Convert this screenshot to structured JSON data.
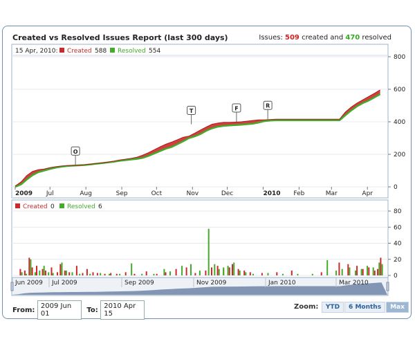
{
  "title": "Created vs Resolved Issues Report (last 300 days)",
  "issues": {
    "prefix": "Issues:",
    "created": "509",
    "created_word": "created and",
    "resolved": "470",
    "resolved_word": "resolved"
  },
  "top_legend": {
    "date": "15 Apr, 2010:",
    "created_label": "Created",
    "created_value": "588",
    "resolved_label": "Resolved",
    "resolved_value": "554"
  },
  "bottom_legend": {
    "created_label": "Created",
    "created_value": "0",
    "resolved_label": "Resolved",
    "resolved_value": "6"
  },
  "colors": {
    "created": "#cc2a2a",
    "resolved": "#44aa2a",
    "navigator": "#6f86a8"
  },
  "chart_data": [
    {
      "type": "area",
      "y_ticks": [
        0,
        200,
        400,
        600,
        800
      ],
      "ylim": [
        0,
        800
      ],
      "x_ticks": [
        "2009",
        "Jul",
        "Aug",
        "Sep",
        "Oct",
        "Nov",
        "Dec",
        "2010",
        "Feb",
        "Mar",
        "Apr"
      ],
      "x_tick_bold": [
        "2009",
        "2010"
      ],
      "xlim": [
        0,
        320
      ],
      "grid": true,
      "x_tick_days": [
        0,
        30,
        61,
        92,
        122,
        153,
        183,
        214,
        245,
        273,
        304
      ],
      "series": [
        {
          "name": "Created",
          "x": [
            0,
            5,
            10,
            15,
            20,
            25,
            30,
            35,
            40,
            45,
            50,
            55,
            60,
            65,
            70,
            75,
            80,
            85,
            90,
            95,
            100,
            105,
            110,
            115,
            120,
            125,
            130,
            135,
            140,
            145,
            150,
            155,
            160,
            165,
            170,
            175,
            180,
            185,
            190,
            195,
            200,
            205,
            210,
            215,
            220,
            225,
            230,
            235,
            240,
            245,
            250,
            255,
            260,
            265,
            270,
            275,
            280,
            285,
            290,
            295,
            300,
            305,
            310,
            315
          ],
          "values": [
            5,
            30,
            70,
            95,
            105,
            110,
            118,
            124,
            128,
            130,
            132,
            134,
            136,
            140,
            144,
            148,
            152,
            158,
            165,
            170,
            175,
            182,
            195,
            210,
            228,
            246,
            262,
            275,
            290,
            305,
            312,
            330,
            350,
            368,
            385,
            392,
            396,
            396,
            398,
            400,
            404,
            408,
            412,
            412,
            414,
            416,
            416,
            416,
            416,
            416,
            416,
            416,
            416,
            416,
            416,
            416,
            416,
            460,
            490,
            515,
            535,
            555,
            575,
            596
          ]
        },
        {
          "name": "Resolved",
          "x": [
            0,
            5,
            10,
            15,
            20,
            25,
            30,
            35,
            40,
            45,
            50,
            55,
            60,
            65,
            70,
            75,
            80,
            85,
            90,
            95,
            100,
            105,
            110,
            115,
            120,
            125,
            130,
            135,
            140,
            145,
            150,
            155,
            160,
            165,
            170,
            175,
            180,
            185,
            190,
            195,
            200,
            205,
            210,
            215,
            220,
            225,
            230,
            235,
            240,
            245,
            250,
            255,
            260,
            265,
            270,
            275,
            280,
            285,
            290,
            295,
            300,
            305,
            310,
            315
          ],
          "values": [
            0,
            15,
            45,
            72,
            90,
            100,
            110,
            118,
            124,
            128,
            130,
            132,
            134,
            138,
            142,
            146,
            150,
            154,
            160,
            164,
            168,
            172,
            178,
            190,
            205,
            220,
            235,
            245,
            262,
            280,
            300,
            310,
            325,
            345,
            360,
            370,
            375,
            378,
            380,
            382,
            385,
            388,
            395,
            404,
            408,
            410,
            410,
            410,
            410,
            410,
            410,
            410,
            410,
            410,
            410,
            410,
            410,
            440,
            470,
            495,
            515,
            530,
            550,
            570
          ]
        }
      ],
      "version_markers": [
        {
          "label": "O",
          "x": 52,
          "y": 135
        },
        {
          "label": "T",
          "x": 152,
          "y": 385
        },
        {
          "label": "F",
          "x": 191,
          "y": 400
        },
        {
          "label": "R",
          "x": 218,
          "y": 416
        }
      ]
    },
    {
      "type": "bar",
      "y_ticks": [
        0,
        20,
        40,
        60,
        80
      ],
      "ylim": [
        0,
        80
      ],
      "series": [
        {
          "name": "Created",
          "x": [
            3,
            6,
            9,
            11,
            14,
            18,
            20,
            24,
            28,
            30,
            33,
            36,
            41,
            45,
            48,
            52,
            55,
            60,
            64,
            68,
            74,
            80,
            88,
            95,
            101,
            108,
            115,
            121,
            128,
            132,
            136,
            140,
            144,
            146,
            150,
            154,
            158,
            166,
            176,
            186,
            206,
            218,
            224,
            230,
            234,
            238,
            242,
            244,
            246
          ],
          "values": [
            8,
            6,
            22,
            10,
            12,
            8,
            6,
            10,
            4,
            14,
            6,
            4,
            12,
            3,
            8,
            4,
            3,
            2,
            3,
            2,
            4,
            2,
            5,
            2,
            4,
            8,
            10,
            3,
            6,
            10,
            12,
            8,
            10,
            14,
            8,
            6,
            4,
            3,
            4,
            6,
            4,
            16,
            14,
            12,
            8,
            10,
            6,
            8,
            22
          ]
        },
        {
          "name": "Resolved",
          "x": [
            4,
            7,
            10,
            13,
            16,
            19,
            22,
            25,
            31,
            34,
            38,
            43,
            50,
            57,
            63,
            70,
            78,
            85,
            93,
            100,
            104,
            112,
            118,
            124,
            130,
            134,
            137,
            140,
            143,
            147,
            151,
            155,
            160,
            170,
            180,
            190,
            200,
            210,
            216,
            220,
            225,
            229,
            233,
            237,
            241,
            245,
            247
          ],
          "values": [
            4,
            2,
            20,
            4,
            6,
            12,
            4,
            3,
            16,
            6,
            4,
            2,
            2,
            3,
            2,
            2,
            15,
            2,
            2,
            8,
            5,
            12,
            14,
            6,
            58,
            14,
            8,
            10,
            12,
            16,
            6,
            4,
            2,
            3,
            2,
            2,
            2,
            19,
            6,
            8,
            10,
            6,
            8,
            12,
            10,
            16,
            14
          ]
        }
      ]
    }
  ],
  "navigator": {
    "labels": [
      "Jun 2009",
      "Jul 2009",
      "Sep 2009",
      "Nov 2009",
      "Jan 2010",
      "Mar 2010"
    ]
  },
  "range": {
    "from_label": "From:",
    "from_value": "2009 Jun 01",
    "to_label": "To:",
    "to_value": "2010 Apr 15"
  },
  "zoom": {
    "label": "Zoom:",
    "buttons": [
      "YTD",
      "6 Months",
      "Max"
    ],
    "active": "Max"
  }
}
